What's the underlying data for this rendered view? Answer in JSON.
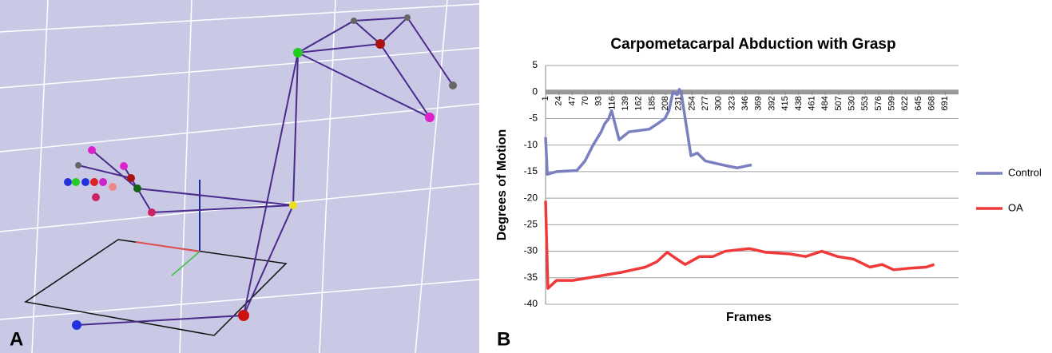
{
  "scene": {
    "panel_label": "A"
  },
  "chart_data": {
    "type": "line",
    "panel_label": "B",
    "title": "Carpometacarpal Abduction with Grasp",
    "x_label": "Frames",
    "y_label": "Degrees of Motion",
    "xlim": [
      1,
      714
    ],
    "xticks": [
      1,
      24,
      47,
      70,
      93,
      116,
      139,
      162,
      185,
      208,
      231,
      254,
      277,
      300,
      323,
      346,
      369,
      392,
      415,
      438,
      461,
      484,
      507,
      530,
      553,
      576,
      599,
      622,
      645,
      668,
      691
    ],
    "ylim": [
      -40,
      5
    ],
    "yticks": [
      -40,
      -35,
      -30,
      -25,
      -20,
      -15,
      -10,
      -5,
      0,
      5
    ],
    "grid": true,
    "legend": "right",
    "series": [
      {
        "name": "Control",
        "color": "#7a7fc0",
        "x": [
          1,
          4,
          20,
          55,
          69,
          83,
          97,
          103,
          110,
          115,
          128,
          145,
          180,
          194,
          207,
          214,
          221,
          228,
          232,
          235,
          252,
          263,
          277,
          297,
          318,
          332,
          353,
          357
        ],
        "values": [
          -8.5,
          -15.5,
          -15,
          -14.8,
          -13,
          -10,
          -7.5,
          -6,
          -5,
          -3.5,
          -9,
          -7.5,
          -7,
          -6,
          -5,
          -3.5,
          0,
          -0.5,
          0.5,
          0,
          -12,
          -11.5,
          -13,
          -13.5,
          -14,
          -14.3,
          -13.8,
          -13.8
        ]
      },
      {
        "name": "OA",
        "color": "#f03a3a",
        "x": [
          1,
          5,
          20,
          48,
          76,
          103,
          131,
          152,
          173,
          193,
          211,
          228,
          242,
          267,
          290,
          311,
          353,
          381,
          422,
          450,
          478,
          505,
          533,
          561,
          582,
          602,
          630,
          658,
          672
        ],
        "values": [
          -20.5,
          -37,
          -35.5,
          -35.5,
          -35,
          -34.5,
          -34,
          -33.5,
          -33,
          -32,
          -30.2,
          -31.5,
          -32.5,
          -31,
          -31,
          -30,
          -29.5,
          -30.2,
          -30.5,
          -31,
          -30,
          -31,
          -31.5,
          -33,
          -32.5,
          -33.5,
          -33.2,
          -33,
          -32.5
        ]
      }
    ]
  }
}
